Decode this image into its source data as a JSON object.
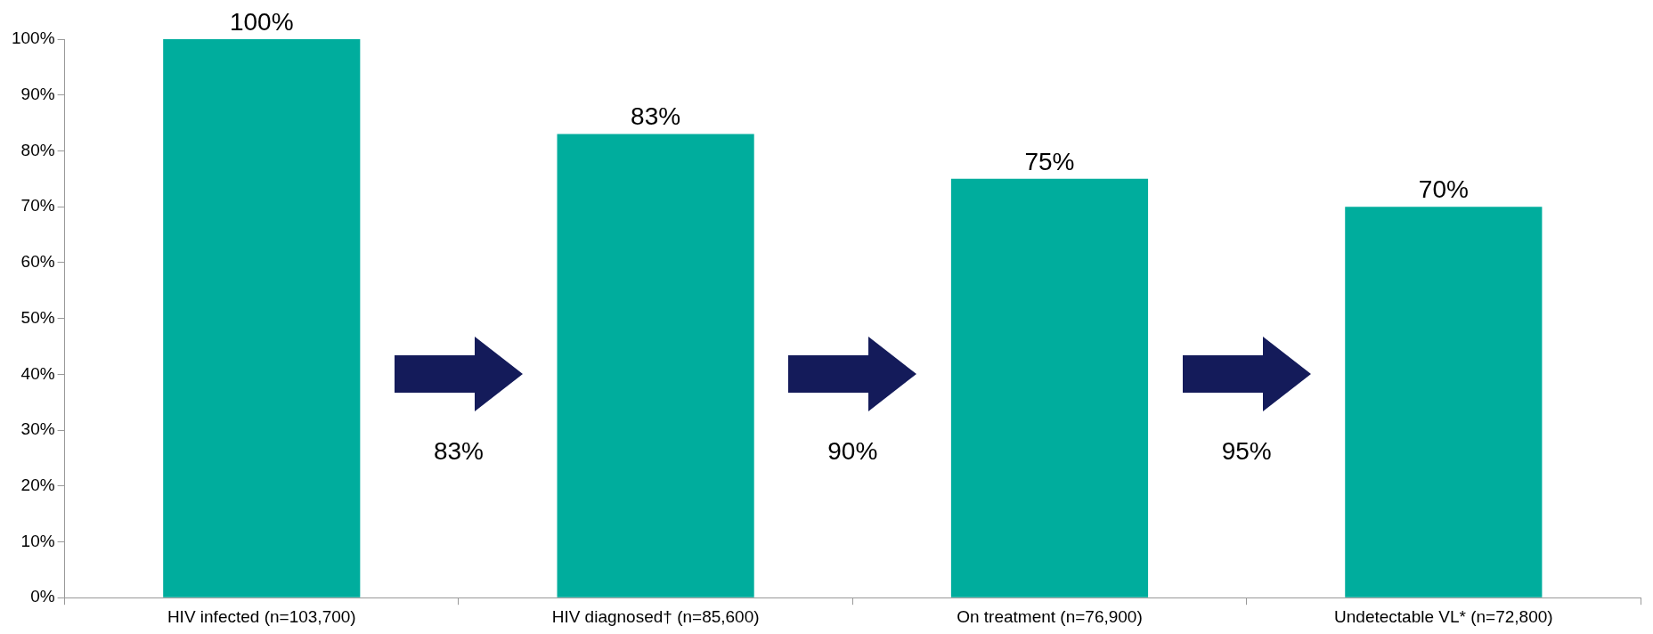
{
  "chart_data": {
    "type": "bar",
    "categories": [
      "HIV infected (n=103,700)",
      "HIV diagnosed† (n=85,600)",
      "On treatment (n=76,900)",
      "Undetectable VL* (n=72,800)"
    ],
    "values": [
      100,
      83,
      75,
      70
    ],
    "color": "#00ad9d",
    "ylim": [
      0,
      100
    ],
    "yticks": [
      {
        "value": 0,
        "label": "0%"
      },
      {
        "value": 10,
        "label": "10%"
      },
      {
        "value": 20,
        "label": "20%"
      },
      {
        "value": 30,
        "label": "30%"
      },
      {
        "value": 40,
        "label": "40%"
      },
      {
        "value": 50,
        "label": "50%"
      },
      {
        "value": 60,
        "label": "60%"
      },
      {
        "value": 70,
        "label": "70%"
      },
      {
        "value": 80,
        "label": "80%"
      },
      {
        "value": 90,
        "label": "90%"
      },
      {
        "value": 100,
        "label": "100%"
      }
    ],
    "value_labels": [
      "100%",
      "83%",
      "75%",
      "70%"
    ],
    "annotations": [
      "83%",
      "90%",
      "95%"
    ],
    "grid": false,
    "legend": false
  }
}
